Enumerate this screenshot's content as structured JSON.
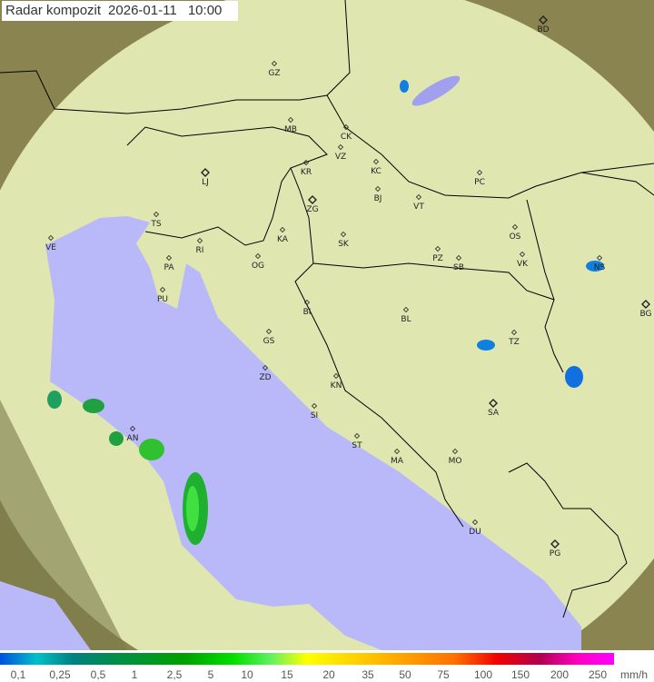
{
  "header": {
    "title": "Radar kompozit",
    "date": "2026-01-11",
    "time": "10:00"
  },
  "map": {
    "colors": {
      "sea": "#b9b9fa",
      "land": "#dfe6b0",
      "outside": "#8a8550",
      "border": "#000000"
    },
    "cities": [
      {
        "label": "BD",
        "capital": true
      },
      {
        "label": "GZ"
      },
      {
        "label": "MB"
      },
      {
        "label": "CK"
      },
      {
        "label": "VZ"
      },
      {
        "label": "KR"
      },
      {
        "label": "KC"
      },
      {
        "label": "PC"
      },
      {
        "label": "LJ",
        "capital": true
      },
      {
        "label": "ZG",
        "capital": true
      },
      {
        "label": "BJ"
      },
      {
        "label": "VT"
      },
      {
        "label": "TS"
      },
      {
        "label": "VE"
      },
      {
        "label": "RI"
      },
      {
        "label": "KA"
      },
      {
        "label": "SK"
      },
      {
        "label": "OS"
      },
      {
        "label": "PA"
      },
      {
        "label": "OG"
      },
      {
        "label": "PZ"
      },
      {
        "label": "SB"
      },
      {
        "label": "VK"
      },
      {
        "label": "NS"
      },
      {
        "label": "BG",
        "capital": true
      },
      {
        "label": "PU"
      },
      {
        "label": "BI"
      },
      {
        "label": "BL"
      },
      {
        "label": "GS"
      },
      {
        "label": "TZ"
      },
      {
        "label": "ZD"
      },
      {
        "label": "KN"
      },
      {
        "label": "SA",
        "capital": true
      },
      {
        "label": "SI"
      },
      {
        "label": "AN"
      },
      {
        "label": "ST"
      },
      {
        "label": "MA"
      },
      {
        "label": "MO"
      },
      {
        "label": "DU"
      },
      {
        "label": "PG",
        "capital": true
      }
    ]
  },
  "legend": {
    "labels": [
      "0,1",
      "0,25",
      "0,5",
      "1",
      "2,5",
      "5",
      "10",
      "15",
      "20",
      "35",
      "50",
      "75",
      "100",
      "150",
      "200",
      "250"
    ],
    "unit": "mm/h"
  }
}
